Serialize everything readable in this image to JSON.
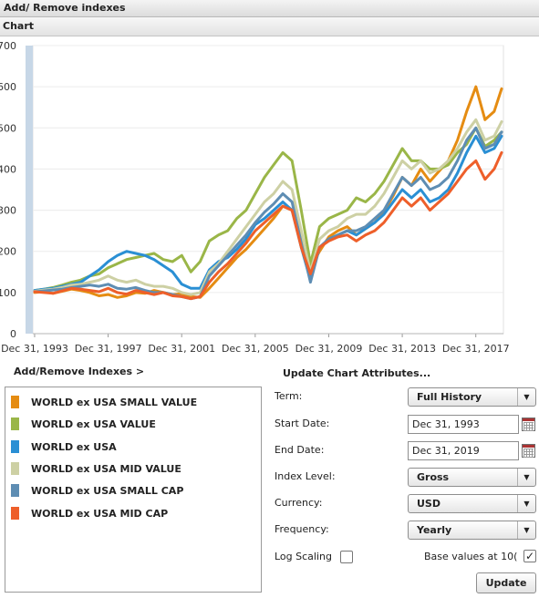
{
  "header": {
    "title": "Add/ Remove indexes"
  },
  "chart_section": {
    "title": "Chart"
  },
  "chart_data": {
    "type": "line",
    "title": "",
    "xlabel": "",
    "ylabel": "",
    "ylim": [
      0,
      700
    ],
    "yticks": [
      0,
      100,
      200,
      300,
      400,
      500,
      600,
      700
    ],
    "x_range": [
      1993.9,
      2019.5
    ],
    "x_tick_values": [
      1993.997,
      1997.997,
      2001.997,
      2005.997,
      2009.997,
      2013.997,
      2017.997
    ],
    "x_tick_labels": [
      "Dec 31, 1993",
      "Dec 31, 1997",
      "Dec 31, 2001",
      "Dec 31, 2005",
      "Dec 31, 2009",
      "Dec 31, 2013",
      "Dec 31, 2017"
    ],
    "grid": true,
    "series": [
      {
        "name": "WORLD ex USA SMALL VALUE",
        "color": "#E58C12",
        "x": [
          1994.0,
          1994.5,
          1995.0,
          1995.5,
          1996.0,
          1996.5,
          1997.0,
          1997.5,
          1998.0,
          1998.5,
          1999.0,
          1999.5,
          2000.0,
          2000.5,
          2001.0,
          2001.5,
          2002.0,
          2002.5,
          2003.0,
          2003.5,
          2004.0,
          2004.5,
          2005.0,
          2005.5,
          2006.0,
          2006.5,
          2007.0,
          2007.5,
          2008.0,
          2008.5,
          2009.0,
          2009.5,
          2010.0,
          2010.5,
          2011.0,
          2011.5,
          2012.0,
          2012.5,
          2013.0,
          2013.5,
          2014.0,
          2014.5,
          2015.0,
          2015.5,
          2016.0,
          2016.5,
          2017.0,
          2017.5,
          2018.0,
          2018.5,
          2019.0,
          2019.4
        ],
        "y": [
          100,
          102,
          98,
          103,
          108,
          105,
          100,
          92,
          95,
          88,
          92,
          100,
          98,
          105,
          100,
          95,
          97,
          90,
          88,
          110,
          135,
          160,
          185,
          205,
          230,
          255,
          280,
          310,
          300,
          235,
          160,
          200,
          235,
          250,
          260,
          240,
          255,
          270,
          295,
          335,
          380,
          360,
          400,
          370,
          395,
          420,
          470,
          540,
          600,
          520,
          540,
          595
        ]
      },
      {
        "name": "WORLD ex USA VALUE",
        "color": "#9AB648",
        "x": [
          1994.0,
          1994.5,
          1995.0,
          1995.5,
          1996.0,
          1996.5,
          1997.0,
          1997.5,
          1998.0,
          1998.5,
          1999.0,
          1999.5,
          2000.0,
          2000.5,
          2001.0,
          2001.5,
          2002.0,
          2002.5,
          2003.0,
          2003.5,
          2004.0,
          2004.5,
          2005.0,
          2005.5,
          2006.0,
          2006.5,
          2007.0,
          2007.5,
          2008.0,
          2008.5,
          2009.0,
          2009.5,
          2010.0,
          2010.5,
          2011.0,
          2011.5,
          2012.0,
          2012.5,
          2013.0,
          2013.5,
          2014.0,
          2014.5,
          2015.0,
          2015.5,
          2016.0,
          2016.5,
          2017.0,
          2017.5,
          2018.0,
          2018.5,
          2019.0,
          2019.4
        ],
        "y": [
          105,
          108,
          112,
          118,
          125,
          130,
          140,
          145,
          160,
          170,
          180,
          185,
          190,
          195,
          180,
          175,
          190,
          150,
          175,
          225,
          240,
          250,
          280,
          300,
          340,
          380,
          410,
          440,
          420,
          300,
          170,
          260,
          280,
          290,
          300,
          330,
          320,
          340,
          370,
          410,
          450,
          420,
          420,
          400,
          400,
          410,
          440,
          460,
          500,
          455,
          470,
          490
        ]
      },
      {
        "name": "WORLD ex USA",
        "color": "#2A8FD4",
        "x": [
          1994.0,
          1994.5,
          1995.0,
          1995.5,
          1996.0,
          1996.5,
          1997.0,
          1997.5,
          1998.0,
          1998.5,
          1999.0,
          1999.5,
          2000.0,
          2000.5,
          2001.0,
          2001.5,
          2002.0,
          2002.5,
          2003.0,
          2003.5,
          2004.0,
          2004.5,
          2005.0,
          2005.5,
          2006.0,
          2006.5,
          2007.0,
          2007.5,
          2008.0,
          2008.5,
          2009.0,
          2009.5,
          2010.0,
          2010.5,
          2011.0,
          2011.5,
          2012.0,
          2012.5,
          2013.0,
          2013.5,
          2014.0,
          2014.5,
          2015.0,
          2015.5,
          2016.0,
          2016.5,
          2017.0,
          2017.5,
          2018.0,
          2018.5,
          2019.0,
          2019.4
        ],
        "y": [
          105,
          108,
          110,
          115,
          120,
          125,
          140,
          155,
          175,
          190,
          200,
          195,
          190,
          180,
          165,
          150,
          120,
          110,
          110,
          155,
          175,
          185,
          205,
          230,
          265,
          280,
          300,
          320,
          300,
          210,
          130,
          210,
          230,
          240,
          250,
          240,
          255,
          270,
          290,
          320,
          350,
          330,
          350,
          320,
          330,
          350,
          390,
          440,
          480,
          440,
          450,
          480
        ]
      },
      {
        "name": "WORLD ex USA MID VALUE",
        "color": "#CDD0A4",
        "x": [
          1994.0,
          1994.5,
          1995.0,
          1995.5,
          1996.0,
          1996.5,
          1997.0,
          1997.5,
          1998.0,
          1998.5,
          1999.0,
          1999.5,
          2000.0,
          2000.5,
          2001.0,
          2001.5,
          2002.0,
          2002.5,
          2003.0,
          2003.5,
          2004.0,
          2004.5,
          2005.0,
          2005.5,
          2006.0,
          2006.5,
          2007.0,
          2007.5,
          2008.0,
          2008.5,
          2009.0,
          2009.5,
          2010.0,
          2010.5,
          2011.0,
          2011.5,
          2012.0,
          2012.5,
          2013.0,
          2013.5,
          2014.0,
          2014.5,
          2015.0,
          2015.5,
          2016.0,
          2016.5,
          2017.0,
          2017.5,
          2018.0,
          2018.5,
          2019.0,
          2019.4
        ],
        "y": [
          103,
          106,
          108,
          112,
          118,
          120,
          125,
          130,
          140,
          130,
          125,
          130,
          120,
          115,
          115,
          110,
          100,
          95,
          100,
          150,
          170,
          200,
          230,
          260,
          290,
          320,
          340,
          370,
          350,
          250,
          150,
          230,
          250,
          260,
          280,
          290,
          290,
          310,
          340,
          380,
          420,
          400,
          420,
          390,
          400,
          420,
          450,
          490,
          520,
          470,
          480,
          515
        ]
      },
      {
        "name": "WORLD ex USA SMALL CAP",
        "color": "#5E8DB3",
        "x": [
          1994.0,
          1994.5,
          1995.0,
          1995.5,
          1996.0,
          1996.5,
          1997.0,
          1997.5,
          1998.0,
          1998.5,
          1999.0,
          1999.5,
          2000.0,
          2000.5,
          2001.0,
          2001.5,
          2002.0,
          2002.5,
          2003.0,
          2003.5,
          2004.0,
          2004.5,
          2005.0,
          2005.5,
          2006.0,
          2006.5,
          2007.0,
          2007.5,
          2008.0,
          2008.5,
          2009.0,
          2009.5,
          2010.0,
          2010.5,
          2011.0,
          2011.5,
          2012.0,
          2012.5,
          2013.0,
          2013.5,
          2014.0,
          2014.5,
          2015.0,
          2015.5,
          2016.0,
          2016.5,
          2017.0,
          2017.5,
          2018.0,
          2018.5,
          2019.0,
          2019.4
        ],
        "y": [
          102,
          104,
          106,
          108,
          112,
          115,
          118,
          115,
          120,
          110,
          108,
          112,
          105,
          100,
          100,
          95,
          90,
          85,
          90,
          140,
          165,
          190,
          215,
          240,
          270,
          295,
          315,
          340,
          320,
          220,
          125,
          210,
          230,
          240,
          250,
          250,
          260,
          280,
          300,
          340,
          380,
          360,
          380,
          350,
          360,
          380,
          420,
          470,
          500,
          450,
          460,
          490
        ]
      },
      {
        "name": "WORLD ex USA MID CAP",
        "color": "#EE5F2A",
        "x": [
          1994.0,
          1994.5,
          1995.0,
          1995.5,
          1996.0,
          1996.5,
          1997.0,
          1997.5,
          1998.0,
          1998.5,
          1999.0,
          1999.5,
          2000.0,
          2000.5,
          2001.0,
          2001.5,
          2002.0,
          2002.5,
          2003.0,
          2003.5,
          2004.0,
          2004.5,
          2005.0,
          2005.5,
          2006.0,
          2006.5,
          2007.0,
          2007.5,
          2008.0,
          2008.5,
          2009.0,
          2009.5,
          2010.0,
          2010.5,
          2011.0,
          2011.5,
          2012.0,
          2012.5,
          2013.0,
          2013.5,
          2014.0,
          2014.5,
          2015.0,
          2015.5,
          2016.0,
          2016.5,
          2017.0,
          2017.5,
          2018.0,
          2018.5,
          2019.0,
          2019.4
        ],
        "y": [
          102,
          100,
          98,
          104,
          110,
          108,
          105,
          102,
          110,
          100,
          96,
          105,
          100,
          95,
          100,
          92,
          90,
          85,
          90,
          125,
          150,
          170,
          195,
          220,
          250,
          270,
          290,
          310,
          300,
          210,
          145,
          210,
          225,
          235,
          240,
          225,
          240,
          250,
          270,
          300,
          330,
          310,
          330,
          300,
          320,
          340,
          370,
          400,
          420,
          375,
          400,
          440
        ]
      }
    ]
  },
  "left_panel": {
    "title": "Add/Remove Indexes >",
    "legend": [
      {
        "label": "WORLD ex USA SMALL VALUE",
        "color": "#E58C12"
      },
      {
        "label": "WORLD ex USA VALUE",
        "color": "#9AB648"
      },
      {
        "label": "WORLD ex USA",
        "color": "#2A8FD4"
      },
      {
        "label": "WORLD ex USA MID VALUE",
        "color": "#CDD0A4"
      },
      {
        "label": "WORLD ex USA SMALL CAP",
        "color": "#5E8DB3"
      },
      {
        "label": "WORLD ex USA MID CAP",
        "color": "#EE5F2A"
      }
    ]
  },
  "attributes": {
    "title": "Update Chart Attributes...",
    "term_label": "Term:",
    "term_value": "Full History",
    "start_label": "Start Date:",
    "start_value": "Dec 31, 1993",
    "end_label": "End Date:",
    "end_value": "Dec 31, 2019",
    "index_level_label": "Index Level:",
    "index_level_value": "Gross",
    "currency_label": "Currency:",
    "currency_value": "USD",
    "frequency_label": "Frequency:",
    "frequency_value": "Yearly",
    "log_scaling_label": "Log Scaling",
    "log_scaling_checked": false,
    "base_values_label": "Base values at 10(",
    "base_values_checked": true,
    "update_label": "Update"
  }
}
